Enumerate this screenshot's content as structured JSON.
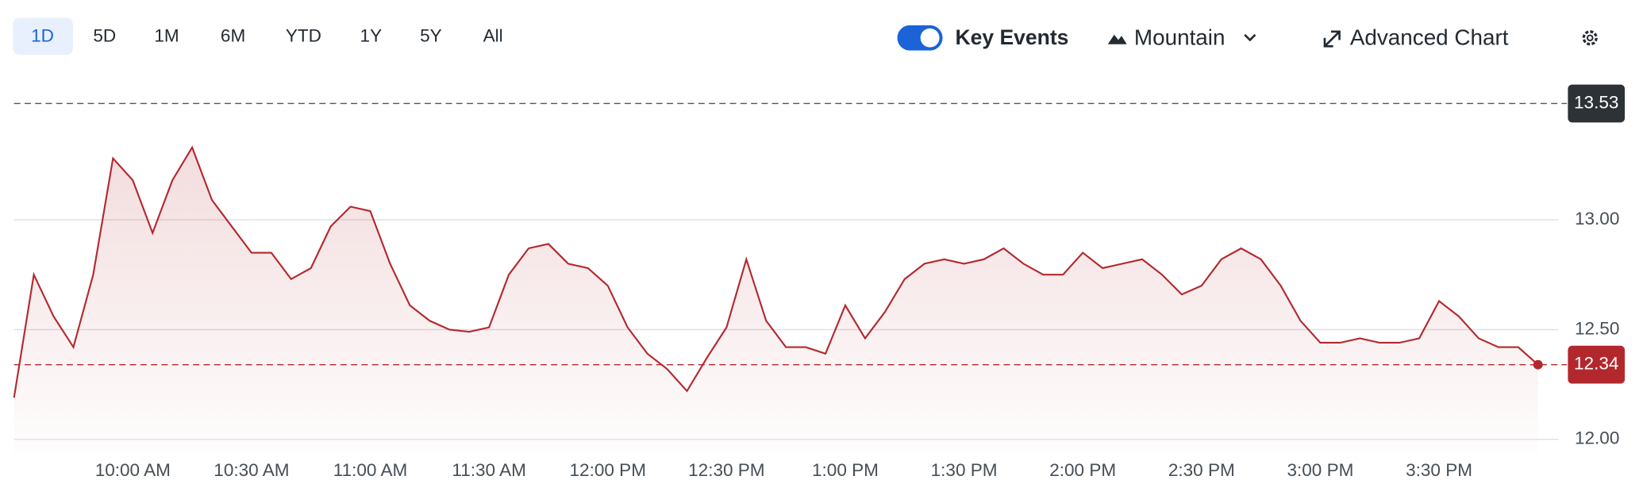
{
  "toolbar": {
    "ranges": [
      "1D",
      "5D",
      "1M",
      "6M",
      "YTD",
      "1Y",
      "5Y",
      "All"
    ],
    "active": "1D",
    "key_events": "Key Events",
    "chart_style": "Mountain",
    "advanced": "Advanced Chart"
  },
  "chart_data": {
    "type": "line",
    "color": "#b3282d",
    "x": [
      "9:30 AM",
      "9:35 AM",
      "9:40 AM",
      "9:45 AM",
      "9:50 AM",
      "9:55 AM",
      "10:00 AM",
      "10:05 AM",
      "10:10 AM",
      "10:15 AM",
      "10:20 AM",
      "10:25 AM",
      "10:30 AM",
      "10:35 AM",
      "10:40 AM",
      "10:45 AM",
      "10:50 AM",
      "10:55 AM",
      "11:00 AM",
      "11:05 AM",
      "11:10 AM",
      "11:15 AM",
      "11:20 AM",
      "11:25 AM",
      "11:30 AM",
      "11:35 AM",
      "11:40 AM",
      "11:45 AM",
      "11:50 AM",
      "11:55 AM",
      "12:00 PM",
      "12:05 PM",
      "12:10 PM",
      "12:15 PM",
      "12:20 PM",
      "12:25 PM",
      "12:30 PM",
      "12:35 PM",
      "12:40 PM",
      "12:45 PM",
      "12:50 PM",
      "12:55 PM",
      "1:00 PM",
      "1:05 PM",
      "1:10 PM",
      "1:15 PM",
      "1:20 PM",
      "1:25 PM",
      "1:30 PM",
      "1:35 PM",
      "1:40 PM",
      "1:45 PM",
      "1:50 PM",
      "1:55 PM",
      "2:00 PM",
      "2:05 PM",
      "2:10 PM",
      "2:15 PM",
      "2:20 PM",
      "2:25 PM",
      "2:30 PM",
      "2:35 PM",
      "2:40 PM",
      "2:45 PM",
      "2:50 PM",
      "2:55 PM",
      "3:00 PM",
      "3:05 PM",
      "3:10 PM",
      "3:15 PM",
      "3:20 PM",
      "3:25 PM",
      "3:30 PM",
      "3:35 PM",
      "3:40 PM",
      "3:45 PM",
      "3:50 PM",
      "3:55 PM"
    ],
    "values": [
      12.19,
      12.75,
      12.56,
      12.42,
      12.75,
      13.28,
      13.18,
      12.94,
      13.18,
      13.33,
      13.09,
      12.97,
      12.85,
      12.85,
      12.73,
      12.78,
      12.97,
      13.06,
      13.04,
      12.8,
      12.61,
      12.54,
      12.5,
      12.49,
      12.51,
      12.75,
      12.87,
      12.89,
      12.8,
      12.78,
      12.7,
      12.51,
      12.39,
      12.32,
      12.22,
      12.37,
      12.51,
      12.82,
      12.54,
      12.42,
      12.42,
      12.39,
      12.61,
      12.46,
      12.58,
      12.73,
      12.8,
      12.82,
      12.8,
      12.82,
      12.87,
      12.8,
      12.75,
      12.75,
      12.85,
      12.78,
      12.8,
      12.82,
      12.75,
      12.66,
      12.7,
      12.82,
      12.87,
      12.82,
      12.7,
      12.54,
      12.44,
      12.44,
      12.46,
      12.44,
      12.44,
      12.46,
      12.63,
      12.56,
      12.46,
      12.42,
      12.42,
      12.34
    ],
    "xticks": [
      "10:00 AM",
      "10:30 AM",
      "11:00 AM",
      "11:30 AM",
      "12:00 PM",
      "12:30 PM",
      "1:00 PM",
      "1:30 PM",
      "2:00 PM",
      "2:30 PM",
      "3:00 PM",
      "3:30 PM"
    ],
    "ylim": [
      11.94,
      13.57
    ],
    "yticks": [
      {
        "value": 12,
        "label": "12.00"
      },
      {
        "value": 12.5,
        "label": "12.50"
      },
      {
        "value": 13,
        "label": "13.00"
      }
    ],
    "grid": true,
    "reference_line": 13.53,
    "last_price": 12.34
  }
}
